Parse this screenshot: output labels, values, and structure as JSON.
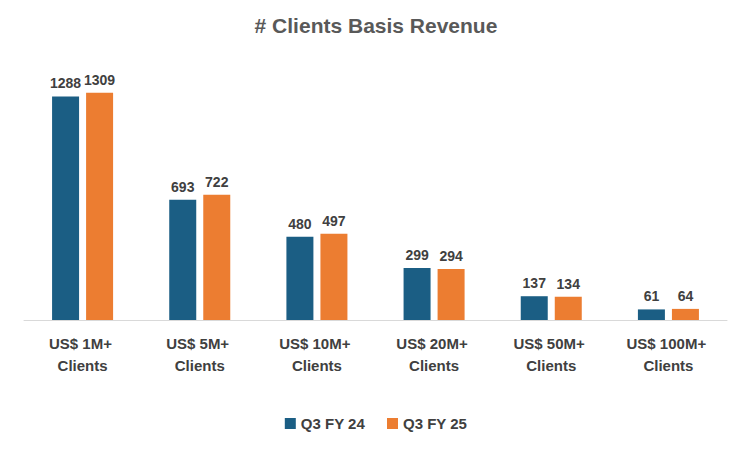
{
  "chart_data": {
    "type": "bar",
    "title": "# Clients Basis Revenue",
    "categories": [
      "US$ 1M+ Clients",
      "US$ 5M+ Clients",
      "US$ 10M+ Clients",
      "US$ 20M+ Clients",
      "US$ 50M+ Clients",
      "US$ 100M+ Clients"
    ],
    "series": [
      {
        "name": "Q3 FY 24",
        "color": "#1b5e84",
        "values": [
          1288,
          693,
          480,
          299,
          137,
          61
        ]
      },
      {
        "name": "Q3 FY 25",
        "color": "#ec7d31",
        "values": [
          1309,
          722,
          497,
          294,
          134,
          64
        ]
      }
    ],
    "ylim": [
      0,
      1400
    ],
    "grid": false,
    "legend": "bottom",
    "data_labels": true,
    "tick_labels": "x"
  }
}
